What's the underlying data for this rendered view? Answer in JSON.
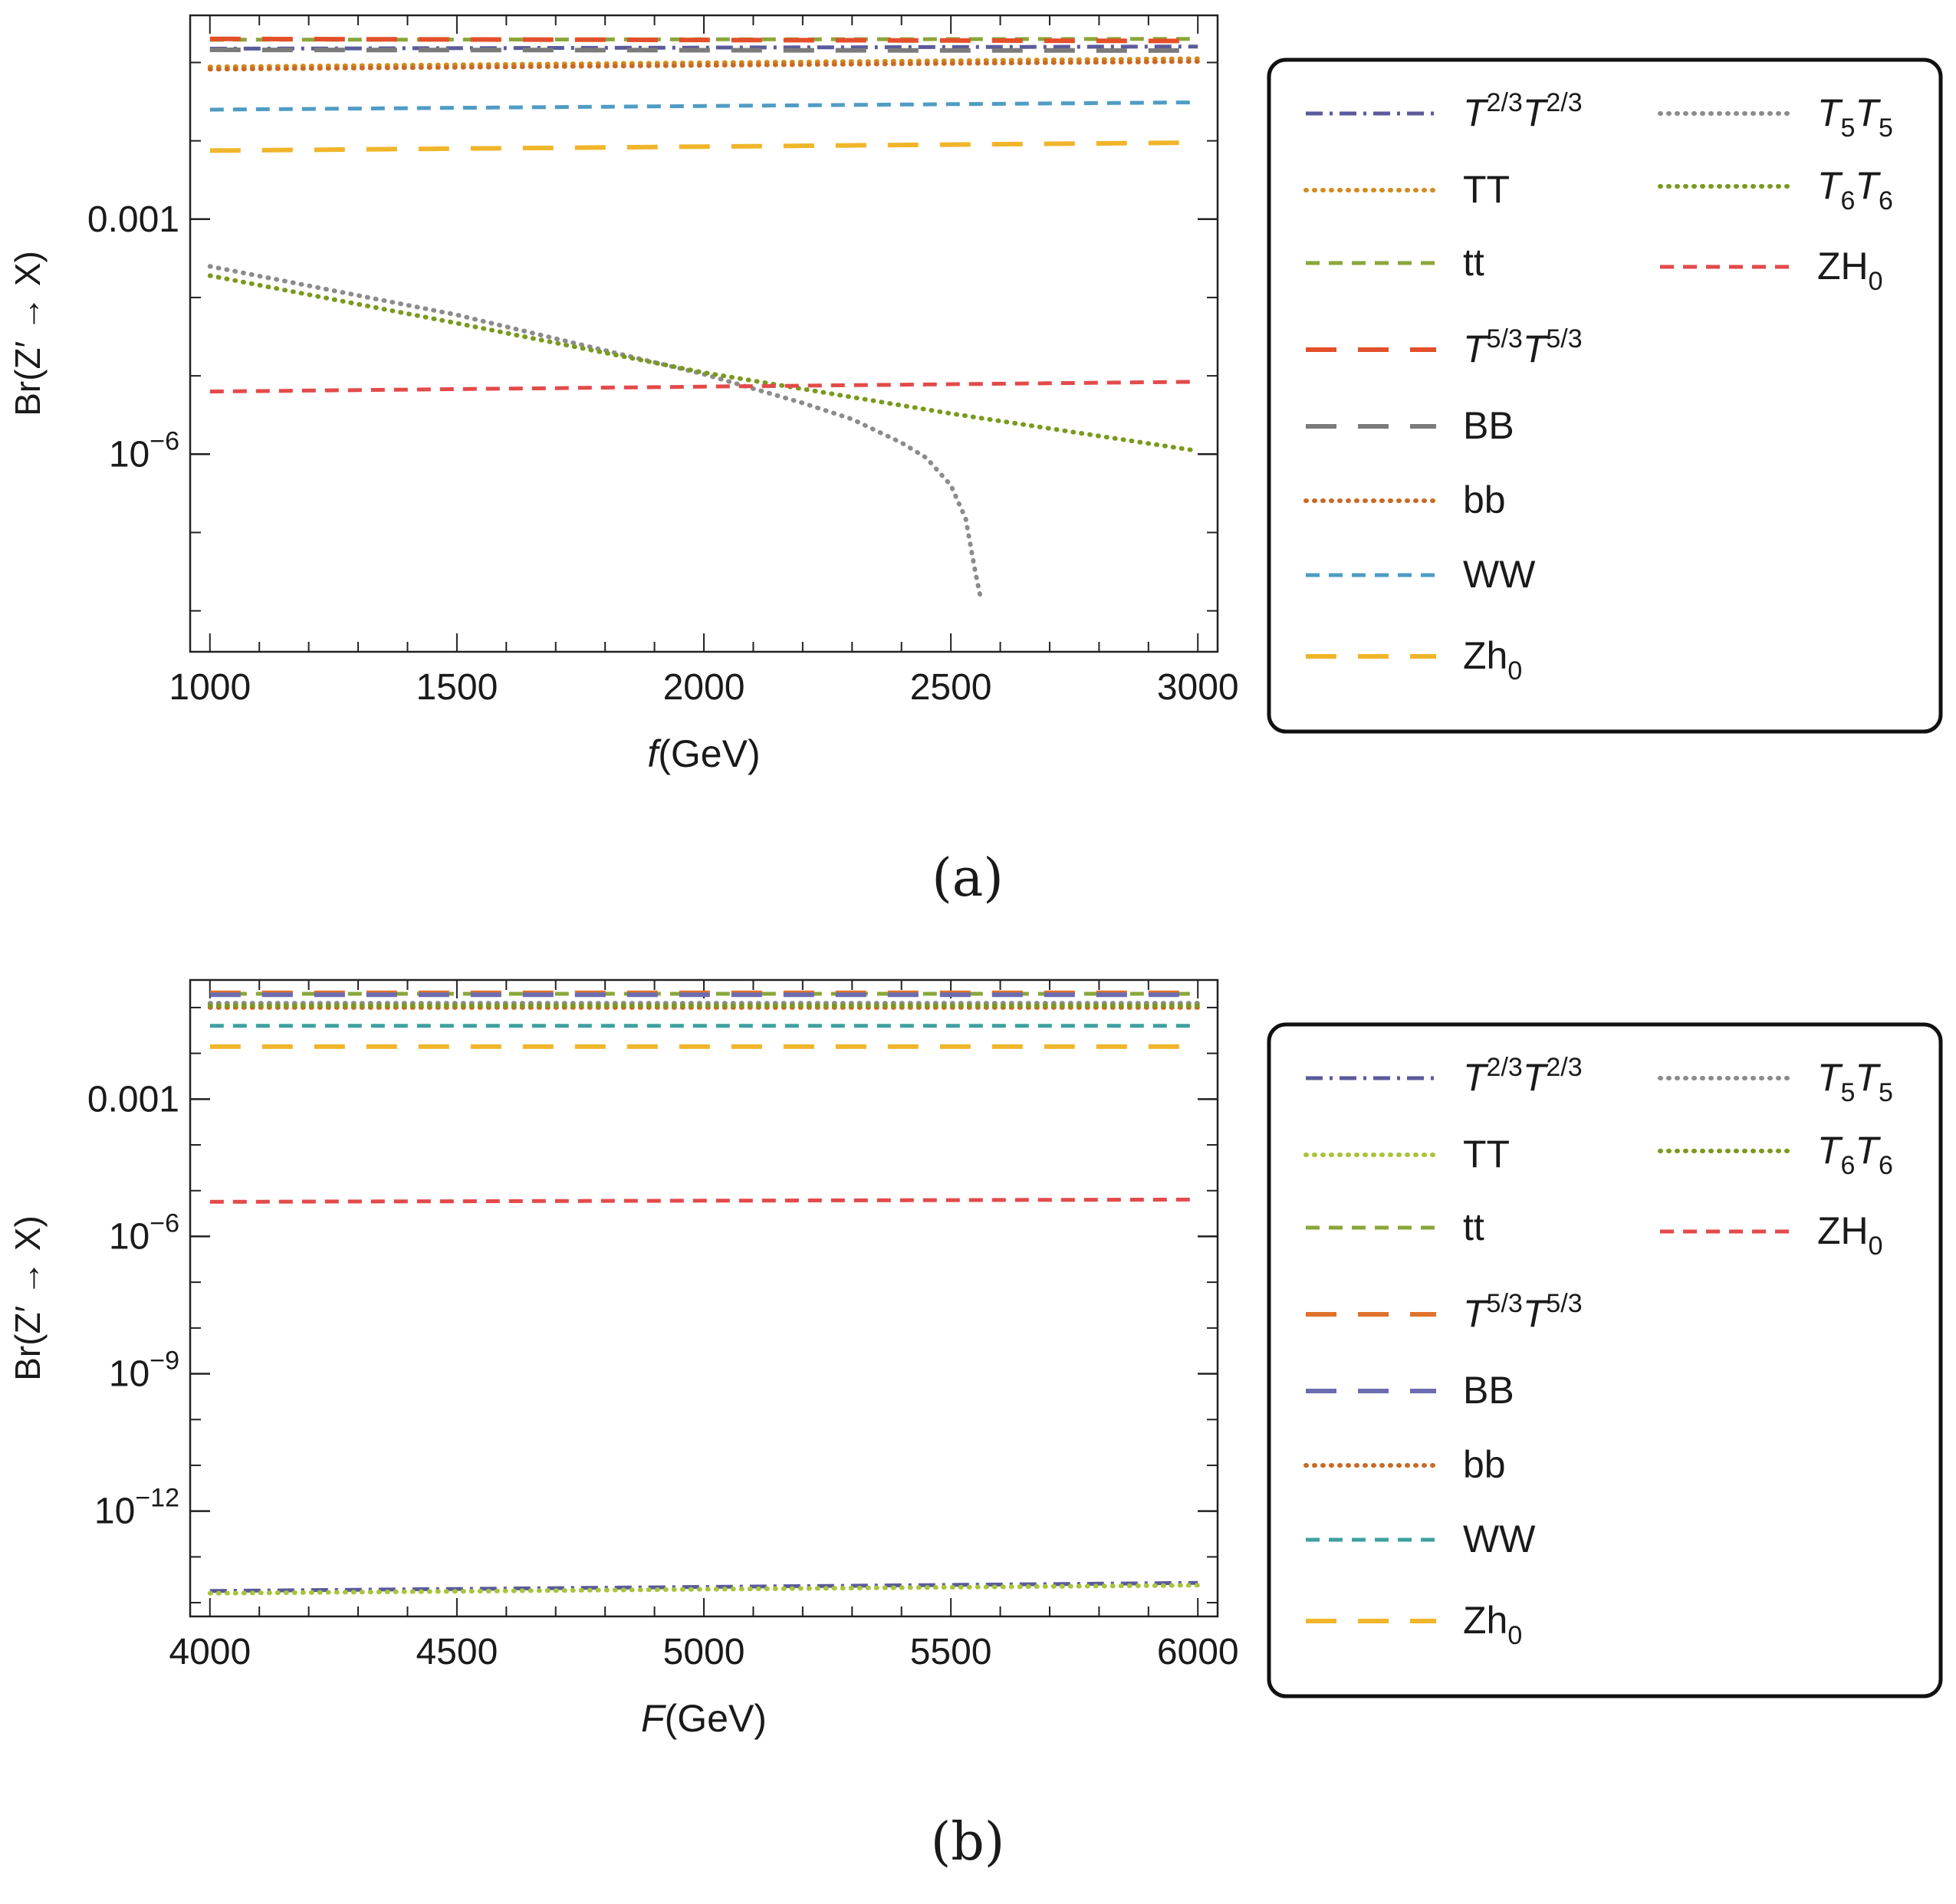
{
  "chart_data": [
    {
      "type": "line",
      "panel_label": "(a)",
      "xlabel": {
        "var": "f",
        "unit": "(GeV)"
      },
      "ylabel": "Br(Z′ → X)",
      "y_scale": "log",
      "xlim": [
        960,
        3040
      ],
      "ylim": [
        3e-09,
        0.4
      ],
      "x_ticks": [
        1000,
        1500,
        2000,
        2500,
        3000
      ],
      "x_tick_labels": [
        "1000",
        "1500",
        "2000",
        "2500",
        "3000"
      ],
      "y_ticks": [
        {
          "value": 0.001,
          "label": "0.001"
        },
        {
          "value": 1e-06,
          "base": "10",
          "exp": "−6"
        }
      ],
      "grid": false,
      "legend_position": "right",
      "series": [
        {
          "name": "T2/3T2/3",
          "x": [
            1000,
            3000
          ],
          "y": [
            0.15,
            0.16
          ],
          "color": "#5a5a9c",
          "dash": "dashdot"
        },
        {
          "name": "TT",
          "x": [
            1000,
            3000
          ],
          "y": [
            0.088,
            0.112
          ],
          "color": "#d38c1e",
          "dash": "dotted"
        },
        {
          "name": "tt",
          "x": [
            1000,
            3000
          ],
          "y": [
            0.195,
            0.2
          ],
          "color": "#8aa63a",
          "dash": "dashed"
        },
        {
          "name": "T5/3T5/3",
          "x": [
            1000,
            3000
          ],
          "y": [
            0.2,
            0.188
          ],
          "color": "#e34f2a",
          "dash": "longdash"
        },
        {
          "name": "BB",
          "x": [
            1000,
            3000
          ],
          "y": [
            0.145,
            0.142
          ],
          "color": "#7b7b7b",
          "dash": "longdash"
        },
        {
          "name": "bb",
          "x": [
            1000,
            3000
          ],
          "y": [
            0.082,
            0.103
          ],
          "color": "#c96a25",
          "dash": "dotted"
        },
        {
          "name": "WW",
          "x": [
            1000,
            3000
          ],
          "y": [
            0.025,
            0.031
          ],
          "color": "#4f9cc4",
          "dash": "dashed"
        },
        {
          "name": "Zh0",
          "x": [
            1000,
            3000
          ],
          "y": [
            0.0075,
            0.0095
          ],
          "color": "#f0b52a",
          "dash": "longdash"
        },
        {
          "name": "T5T5",
          "x": [
            1000,
            1500,
            2000,
            2200,
            2300,
            2400,
            2450,
            2500,
            2530,
            2550,
            2560
          ],
          "y": [
            0.00025,
            6e-05,
            1.05e-05,
            4.5e-06,
            2.8e-06,
            1.4e-06,
            9e-07,
            4e-07,
            1.5e-07,
            3e-08,
            1.5e-08
          ],
          "color": "#8c8c8c",
          "dash": "dotted"
        },
        {
          "name": "T6T6",
          "x": [
            1000,
            1500,
            2000,
            2500,
            3000
          ],
          "y": [
            0.00019,
            4.7e-05,
            1.1e-05,
            3.3e-06,
            1.1e-06
          ],
          "color": "#7a9a1e",
          "dash": "dotted"
        },
        {
          "name": "ZH0",
          "x": [
            1000,
            3000
          ],
          "y": [
            6.3e-06,
            8.4e-06
          ],
          "color": "#e34a4a",
          "dash": "dashed"
        }
      ]
    },
    {
      "type": "line",
      "panel_label": "(b)",
      "xlabel": {
        "var": "F",
        "unit": "(GeV)"
      },
      "ylabel": "Br(Z′ → X)",
      "y_scale": "log",
      "xlim": [
        3960,
        6040
      ],
      "ylim": [
        5e-15,
        0.4
      ],
      "x_ticks": [
        4000,
        4500,
        5000,
        5500,
        6000
      ],
      "x_tick_labels": [
        "4000",
        "4500",
        "5000",
        "5500",
        "6000"
      ],
      "y_ticks": [
        {
          "value": 0.001,
          "label": "0.001"
        },
        {
          "value": 1e-06,
          "base": "10",
          "exp": "−6"
        },
        {
          "value": 1e-09,
          "base": "10",
          "exp": "−9"
        },
        {
          "value": 1e-12,
          "base": "10",
          "exp": "−12"
        }
      ],
      "grid": false,
      "legend_position": "right",
      "series": [
        {
          "name": "T2/3T2/3",
          "x": [
            4000,
            6000
          ],
          "y": [
            1.8e-14,
            2.7e-14
          ],
          "color": "#5a5a9c",
          "dash": "dashdot"
        },
        {
          "name": "TT",
          "x": [
            4000,
            6000
          ],
          "y": [
            1.6e-14,
            2.4e-14
          ],
          "color": "#a8c43a",
          "dash": "dotted"
        },
        {
          "name": "tt",
          "x": [
            4000,
            6000
          ],
          "y": [
            0.2,
            0.2
          ],
          "color": "#8aa63a",
          "dash": "dashed"
        },
        {
          "name": "T5/3T5/3",
          "x": [
            4000,
            6000
          ],
          "y": [
            0.21,
            0.21
          ],
          "color": "#e0722a",
          "dash": "longdash"
        },
        {
          "name": "BB",
          "x": [
            4000,
            6000
          ],
          "y": [
            0.19,
            0.19
          ],
          "color": "#6c6cb0",
          "dash": "longdash"
        },
        {
          "name": "bb",
          "x": [
            4000,
            6000
          ],
          "y": [
            0.1,
            0.1
          ],
          "color": "#c96a25",
          "dash": "dotted"
        },
        {
          "name": "WW",
          "x": [
            4000,
            6000
          ],
          "y": [
            0.04,
            0.04
          ],
          "color": "#3fa0a0",
          "dash": "dashed"
        },
        {
          "name": "Zh0",
          "x": [
            4000,
            6000
          ],
          "y": [
            0.014,
            0.014
          ],
          "color": "#f0b52a",
          "dash": "longdash"
        },
        {
          "name": "T5T5",
          "x": [
            4000,
            6000
          ],
          "y": [
            0.125,
            0.125
          ],
          "color": "#8c8c8c",
          "dash": "dotted"
        },
        {
          "name": "T6T6",
          "x": [
            4000,
            6000
          ],
          "y": [
            0.11,
            0.11
          ],
          "color": "#7a9a1e",
          "dash": "dotted"
        },
        {
          "name": "ZH0",
          "x": [
            4000,
            6000
          ],
          "y": [
            5.7e-06,
            6.4e-06
          ],
          "color": "#e34a4a",
          "dash": "dashed"
        }
      ]
    }
  ]
}
